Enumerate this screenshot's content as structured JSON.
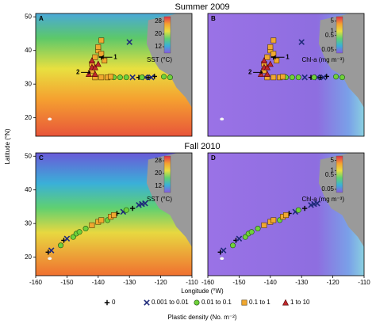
{
  "figure": {
    "xlabel": "Longitude (°W)",
    "ylabel": "Latitude (°N)",
    "legend_title": "Plastic density (No. m⁻²)"
  },
  "chart_data": [
    {
      "type": "scatter",
      "title": "Summer 2009",
      "panel": "A",
      "background": "sst",
      "xlim": [
        -160,
        -110
      ],
      "ylim": [
        14.5,
        51
      ],
      "yticks": [
        20,
        30,
        40,
        50
      ],
      "colorbar": {
        "label": "SST (°C)",
        "lim": [
          8,
          31
        ],
        "ticks": [
          28,
          20,
          12
        ],
        "log": false
      },
      "annotations": [
        "1",
        "2"
      ],
      "series": [
        {
          "name": "0",
          "color": "#000000",
          "marker": "plus",
          "x": [
            -127,
            -124,
            -122,
            -139
          ],
          "y": [
            32,
            32,
            32.3,
            38
          ]
        },
        {
          "name": "0.001 to 0.01",
          "color": "#1f2a7a",
          "marker": "x",
          "x": [
            -130,
            -125,
            -123,
            -129
          ],
          "y": [
            42.5,
            32,
            32,
            32
          ]
        },
        {
          "name": "0.01 to 0.1",
          "color": "#6fd13a",
          "marker": "circle",
          "x": [
            -133,
            -131,
            -119,
            -135,
            -117,
            -126
          ],
          "y": [
            32,
            32,
            32.2,
            32,
            32,
            32
          ]
        },
        {
          "name": "0.1 to 1",
          "color": "#f0a830",
          "marker": "square",
          "x": [
            -141,
            -139,
            -137,
            -136,
            -142,
            -142,
            -141,
            -140,
            -139,
            -138,
            -140,
            -139
          ],
          "y": [
            32,
            32,
            32,
            32.2,
            34,
            36,
            38,
            40,
            39,
            37,
            41,
            43
          ]
        },
        {
          "name": "1 to 10",
          "color": "#c0282d",
          "marker": "triangle",
          "x": [
            -141,
            -142,
            -141,
            -140,
            -142,
            -143
          ],
          "y": [
            33,
            35,
            35,
            36,
            37,
            33
          ]
        }
      ]
    },
    {
      "type": "scatter",
      "panel": "B",
      "background": "chl",
      "xlim": [
        -160,
        -110
      ],
      "ylim": [
        14.5,
        51
      ],
      "colorbar": {
        "label": "Chl-a (mg m⁻³)",
        "lim": [
          0.03,
          10
        ],
        "ticks": [
          5,
          1,
          0.5,
          0.05
        ],
        "log": true
      },
      "annotations": [
        "1",
        "2"
      ],
      "series": [
        {
          "name": "0",
          "color": "#000000",
          "marker": "plus",
          "x": [
            -127,
            -124,
            -122,
            -139
          ],
          "y": [
            32,
            32,
            32.3,
            38
          ]
        },
        {
          "name": "0.001 to 0.01",
          "color": "#1f2a7a",
          "marker": "x",
          "x": [
            -130,
            -125,
            -123,
            -129
          ],
          "y": [
            42.5,
            32,
            32,
            32
          ]
        },
        {
          "name": "0.01 to 0.1",
          "color": "#6fd13a",
          "marker": "circle",
          "x": [
            -133,
            -131,
            -119,
            -135,
            -117,
            -126
          ],
          "y": [
            32,
            32,
            32.2,
            32,
            32,
            32
          ]
        },
        {
          "name": "0.1 to 1",
          "color": "#f0a830",
          "marker": "square",
          "x": [
            -141,
            -139,
            -137,
            -136,
            -142,
            -142,
            -141,
            -140,
            -139,
            -138,
            -140,
            -139
          ],
          "y": [
            32,
            32,
            32,
            32.2,
            34,
            36,
            38,
            40,
            39,
            37,
            41,
            43
          ]
        },
        {
          "name": "1 to 10",
          "color": "#c0282d",
          "marker": "triangle",
          "x": [
            -141,
            -142,
            -141,
            -140,
            -142,
            -143
          ],
          "y": [
            33,
            35,
            35,
            36,
            37,
            33
          ]
        }
      ]
    },
    {
      "type": "scatter",
      "title": "Fall 2010",
      "panel": "C",
      "background": "sst-fall",
      "xlim": [
        -160,
        -110
      ],
      "ylim": [
        14.5,
        51
      ],
      "xticks": [
        -160,
        -150,
        -140,
        -130,
        -120,
        -110
      ],
      "yticks": [
        20,
        30,
        40,
        50
      ],
      "colorbar": {
        "label": "SST (°C)",
        "lim": [
          8,
          31
        ],
        "ticks": [
          28,
          20,
          12
        ],
        "log": false
      },
      "series": [
        {
          "name": "0",
          "color": "#000000",
          "marker": "plus",
          "x": [
            -156,
            -151,
            -134,
            -129
          ],
          "y": [
            21.5,
            25,
            33,
            34.5
          ]
        },
        {
          "name": "0.001 to 0.01",
          "color": "#1f2a7a",
          "marker": "x",
          "x": [
            -155,
            -150,
            -132,
            -127,
            -125,
            -126
          ],
          "y": [
            22,
            25.5,
            33.5,
            35.5,
            36,
            35.8
          ]
        },
        {
          "name": "0.01 to 0.1",
          "color": "#6fd13a",
          "marker": "circle",
          "x": [
            -152,
            -148,
            -147,
            -146,
            -144,
            -137,
            -131
          ],
          "y": [
            23.5,
            26,
            27,
            27.5,
            28.5,
            31,
            34
          ]
        },
        {
          "name": "0.1 to 1",
          "color": "#f0a830",
          "marker": "square",
          "x": [
            -142,
            -140,
            -139,
            -136,
            -135
          ],
          "y": [
            29.5,
            30.5,
            31,
            32,
            32.5
          ]
        }
      ]
    },
    {
      "type": "scatter",
      "panel": "D",
      "background": "chl",
      "xlim": [
        -160,
        -110
      ],
      "ylim": [
        14.5,
        51
      ],
      "xticks": [
        -160,
        -150,
        -140,
        -130,
        -120,
        -110
      ],
      "colorbar": {
        "label": "Chl-a (mg m⁻³)",
        "lim": [
          0.03,
          10
        ],
        "ticks": [
          5,
          1,
          0.5,
          0.05
        ],
        "log": true
      },
      "series": [
        {
          "name": "0",
          "color": "#000000",
          "marker": "plus",
          "x": [
            -156,
            -151,
            -134,
            -129
          ],
          "y": [
            21.5,
            25,
            33,
            34.5
          ]
        },
        {
          "name": "0.001 to 0.01",
          "color": "#1f2a7a",
          "marker": "x",
          "x": [
            -155,
            -150,
            -132,
            -127,
            -125,
            -126
          ],
          "y": [
            22,
            25.5,
            33.5,
            35.5,
            36,
            35.8
          ]
        },
        {
          "name": "0.01 to 0.1",
          "color": "#6fd13a",
          "marker": "circle",
          "x": [
            -152,
            -148,
            -147,
            -146,
            -144,
            -137,
            -131
          ],
          "y": [
            23.5,
            26,
            27,
            27.5,
            28.5,
            31,
            34
          ]
        },
        {
          "name": "0.1 to 1",
          "color": "#f0a830",
          "marker": "square",
          "x": [
            -142,
            -140,
            -139,
            -136,
            -135
          ],
          "y": [
            29.5,
            30.5,
            31,
            32,
            32.5
          ]
        }
      ]
    }
  ]
}
